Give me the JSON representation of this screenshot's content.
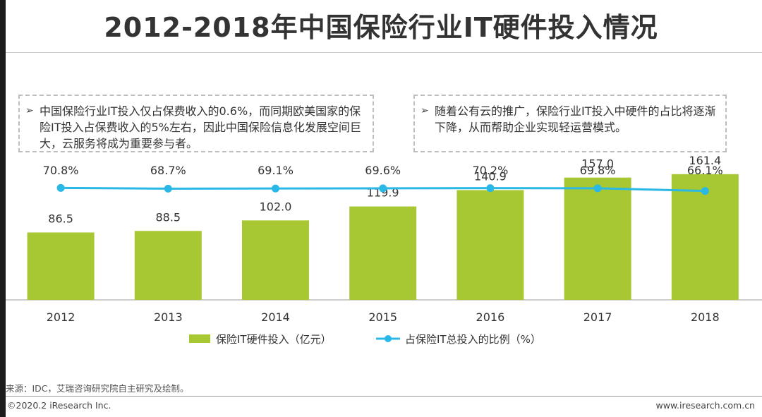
{
  "title": "2012-2018年中国保险行业IT硬件投入情况",
  "notes": {
    "left": "中国保险行业IT投入仅占保费收入的0.6%，而同期欧美国家的保险IT投入占保费收入的5%左右，因此中国保险信息化发展空间巨大，云服务将成为重要参与者。",
    "right": "随着公有云的推广，保险行业IT投入中硬件的占比将逐渐下降，从而帮助企业实现轻运营模式。",
    "bullet": "➢"
  },
  "chart_data": {
    "type": "bar",
    "title": "2012-2018年中国保险行业IT硬件投入情况",
    "categories": [
      "2012",
      "2013",
      "2014",
      "2015",
      "2016",
      "2017",
      "2018"
    ],
    "series": [
      {
        "name": "保险IT硬件投入（亿元）",
        "type": "bar",
        "color": "#a7c832",
        "values": [
          86.5,
          88.5,
          102.0,
          119.9,
          140.9,
          157.0,
          161.4
        ],
        "labels": [
          "86.5",
          "88.5",
          "102.0",
          "119.9",
          "140.9",
          "157.0",
          "161.4"
        ]
      },
      {
        "name": "占保险IT总投入的比例（%）",
        "type": "line",
        "color": "#2ab8e6",
        "values": [
          70.8,
          68.7,
          69.1,
          69.6,
          70.2,
          69.8,
          66.1
        ],
        "labels": [
          "70.8%",
          "68.7%",
          "69.1%",
          "69.6%",
          "70.2%",
          "69.8%",
          "66.1%"
        ]
      }
    ],
    "bar_ylim": [
      0,
      240
    ],
    "line_ylim": [
      0,
      100
    ],
    "xlabel": "",
    "ylabel": "",
    "legend_position": "bottom-center",
    "grid": false
  },
  "footer": {
    "source": "来源：IDC，艾瑞咨询研究院自主研究及绘制。",
    "copyright": "©2020.2  iResearch Inc.",
    "website": "www.iresearch.com.cn"
  }
}
